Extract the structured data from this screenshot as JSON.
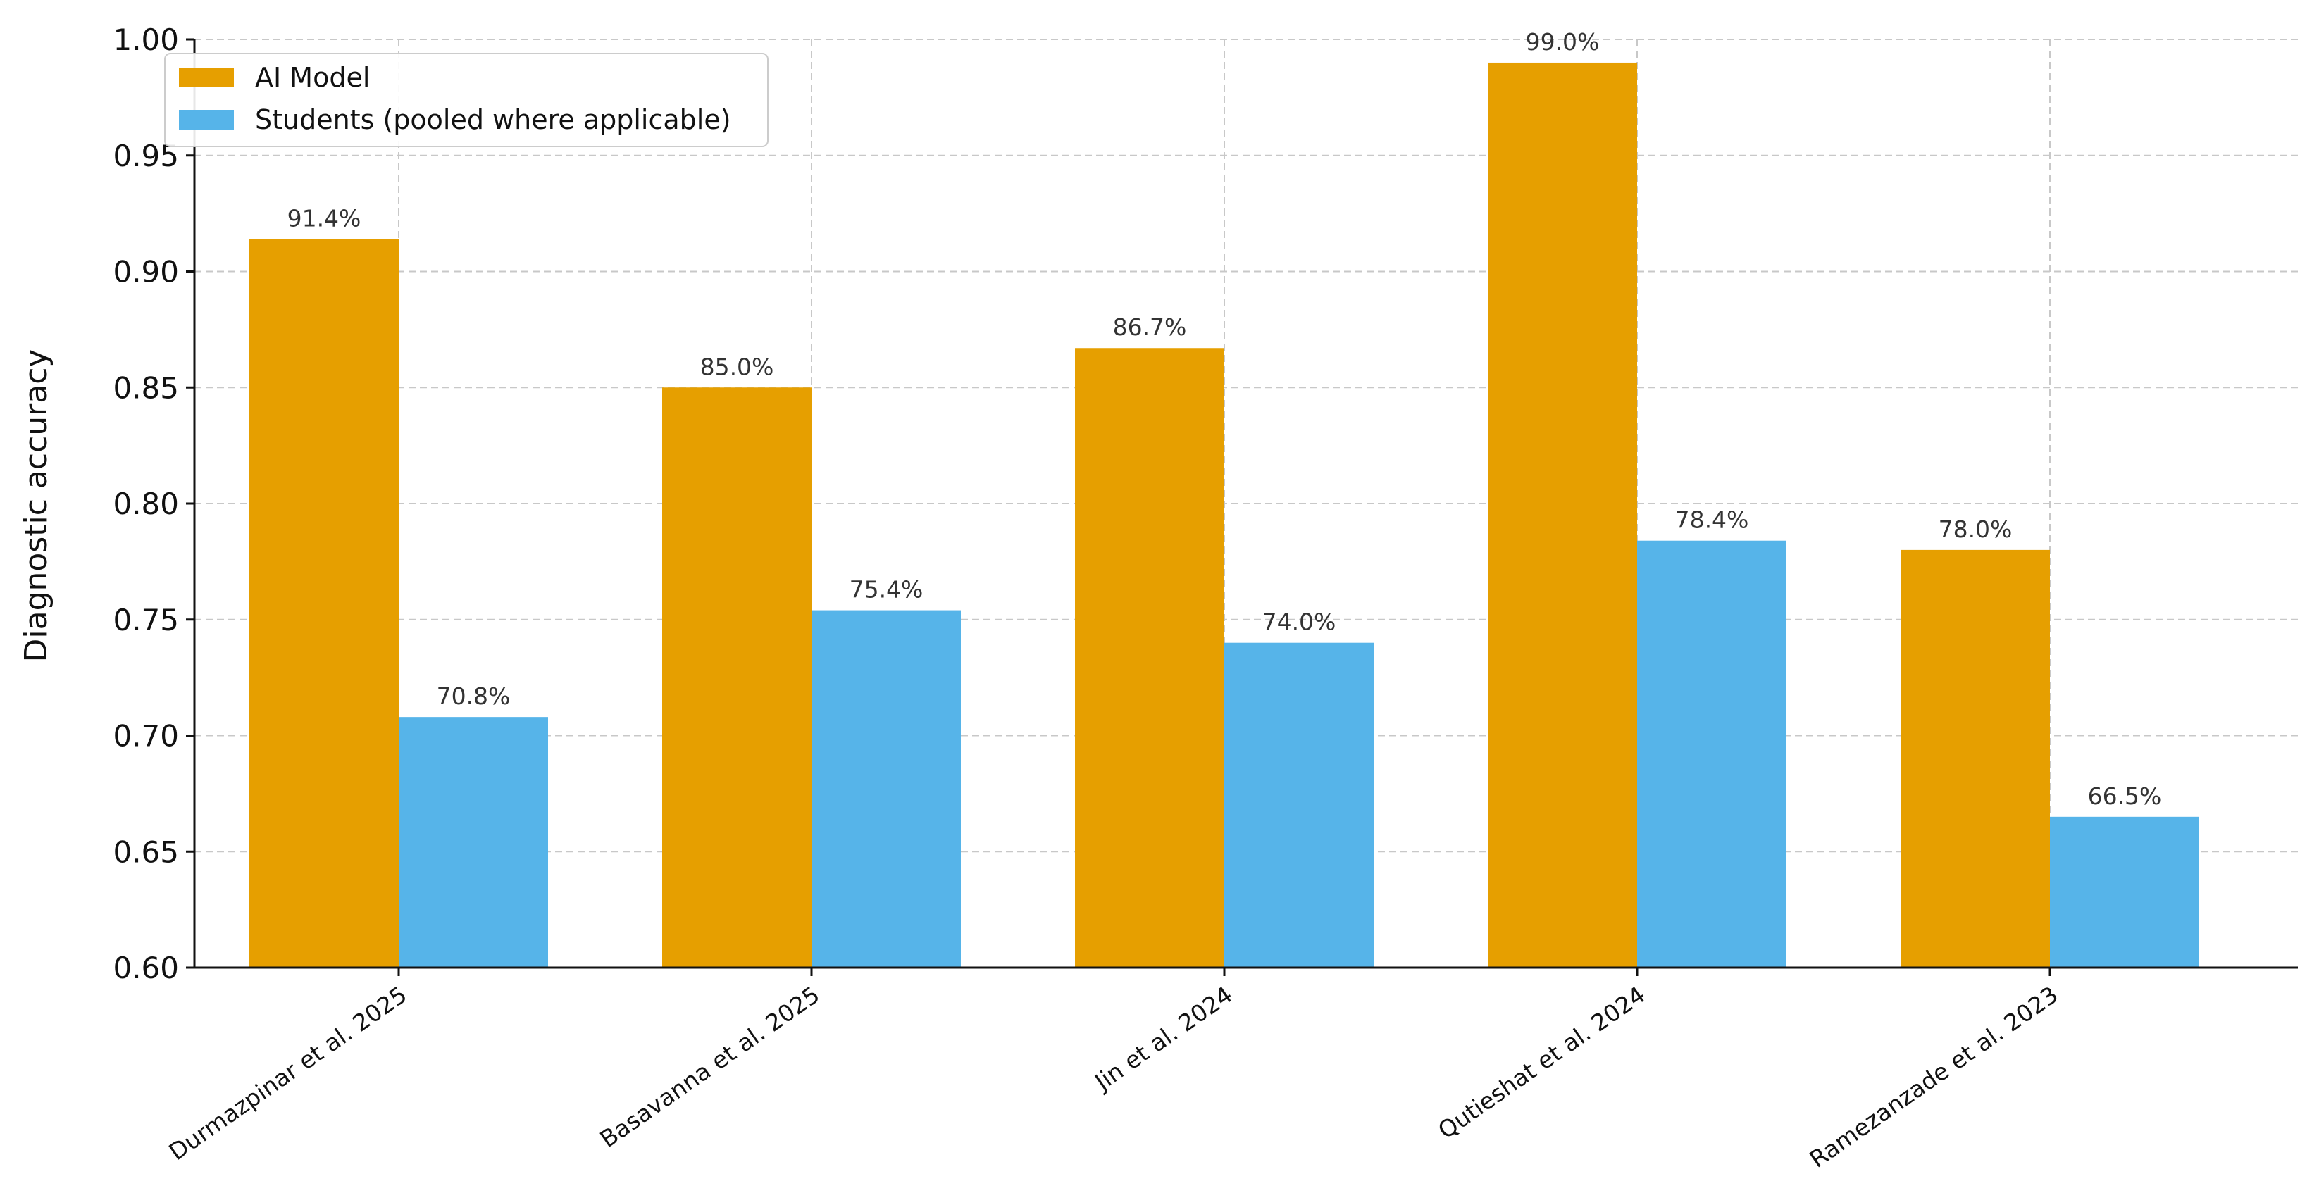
{
  "chart_data": {
    "type": "bar",
    "categories": [
      "Durmazpinar et al. 2025",
      "Basavanna et al. 2025",
      "Jin et al. 2024",
      "Qutieshat et al. 2024",
      "Ramezanzade et al. 2023"
    ],
    "series": [
      {
        "name": "AI Model",
        "color": "#E69F00",
        "values": [
          0.914,
          0.85,
          0.867,
          0.99,
          0.78
        ],
        "labels": [
          "91.4%",
          "85.0%",
          "86.7%",
          "99.0%",
          "78.0%"
        ]
      },
      {
        "name": "Students (pooled where applicable)",
        "color": "#56B4E9",
        "values": [
          0.708,
          0.754,
          0.74,
          0.784,
          0.665
        ],
        "labels": [
          "70.8%",
          "75.4%",
          "74.0%",
          "78.4%",
          "66.5%"
        ]
      }
    ],
    "title": "",
    "xlabel": "",
    "ylabel": "Diagnostic accuracy",
    "ylim": [
      0.6,
      1.0
    ],
    "yticks": [
      0.6,
      0.65,
      0.7,
      0.75,
      0.8,
      0.85,
      0.9,
      0.95,
      1.0
    ],
    "ytick_labels": [
      "0.60",
      "0.65",
      "0.70",
      "0.75",
      "0.80",
      "0.85",
      "0.90",
      "0.95",
      "1.00"
    ],
    "grid": true,
    "legend_position": "top-left"
  }
}
